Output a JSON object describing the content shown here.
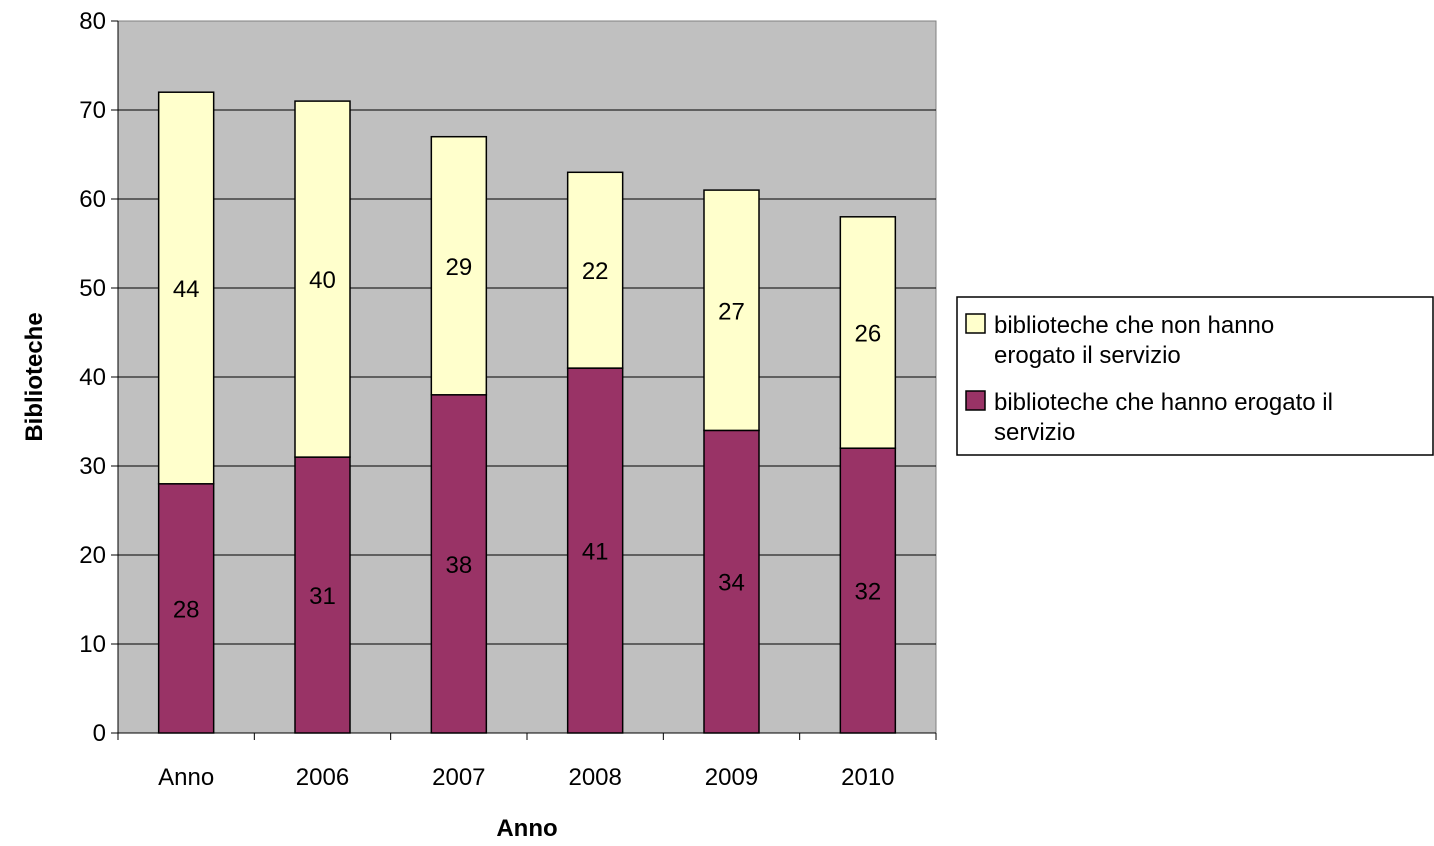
{
  "chart_data": {
    "type": "bar",
    "stacked": true,
    "categories": [
      "Anno",
      "2006",
      "2007",
      "2008",
      "2009",
      "2010"
    ],
    "series": [
      {
        "name": "biblioteche che hanno erogato il servizio",
        "legend_lines": [
          "biblioteche che hanno erogato il",
          "servizio"
        ],
        "values": [
          28,
          31,
          38,
          41,
          34,
          32
        ],
        "color": "#993366"
      },
      {
        "name": "biblioteche che non hanno erogato il servizio",
        "legend_lines": [
          "biblioteche che non hanno",
          "erogato il servizio"
        ],
        "values": [
          44,
          40,
          29,
          22,
          27,
          26
        ],
        "color": "#FFFFCC"
      }
    ],
    "xlabel": "Anno",
    "ylabel": "Biblioteche",
    "ylim": [
      0,
      80
    ],
    "yticks": [
      0,
      10,
      20,
      30,
      40,
      50,
      60,
      70,
      80
    ],
    "grid": true,
    "plot_background": "#C0C0C0",
    "legend_position": "right"
  }
}
